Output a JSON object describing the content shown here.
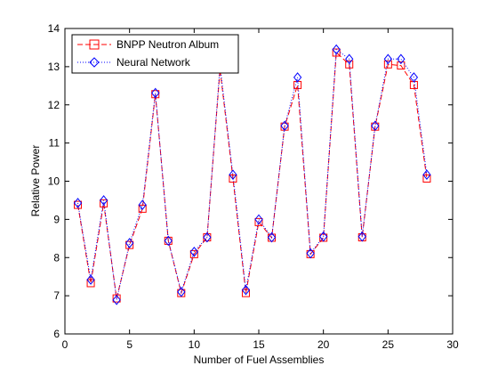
{
  "chart_data": {
    "type": "line",
    "title": "",
    "xlabel": "Number of Fuel Assemblies",
    "ylabel": "Relative Power",
    "xlim": [
      0,
      30
    ],
    "ylim": [
      6,
      14
    ],
    "xticks": [
      0,
      5,
      10,
      15,
      20,
      25,
      30
    ],
    "yticks": [
      6,
      7,
      8,
      9,
      10,
      11,
      12,
      13,
      14
    ],
    "grid": false,
    "legend_position": "top-left",
    "x": [
      1,
      2,
      3,
      4,
      5,
      6,
      7,
      8,
      9,
      10,
      11,
      12,
      13,
      14,
      15,
      16,
      17,
      18,
      19,
      20,
      21,
      22,
      23,
      24,
      25,
      26,
      27,
      28
    ],
    "series": [
      {
        "name": "BNPP Neutron Album",
        "color": "#ff0000",
        "line_style": "dashed",
        "marker": "square",
        "values": [
          9.38,
          7.33,
          9.42,
          6.93,
          8.33,
          9.28,
          12.28,
          8.44,
          7.07,
          8.09,
          8.53,
          12.93,
          10.07,
          7.07,
          8.93,
          8.52,
          11.43,
          12.52,
          8.09,
          8.52,
          13.37,
          13.06,
          8.53,
          11.43,
          13.06,
          13.03,
          12.52,
          10.07
        ]
      },
      {
        "name": "Neural Network",
        "color": "#0000ff",
        "line_style": "dotted",
        "marker": "diamond",
        "values": [
          9.43,
          7.42,
          9.5,
          6.89,
          8.38,
          9.38,
          12.31,
          8.44,
          7.1,
          8.15,
          8.53,
          13.02,
          10.17,
          7.15,
          9.0,
          8.53,
          11.45,
          12.72,
          8.11,
          8.55,
          13.45,
          13.2,
          8.55,
          11.45,
          13.2,
          13.2,
          12.72,
          10.17
        ]
      }
    ]
  }
}
